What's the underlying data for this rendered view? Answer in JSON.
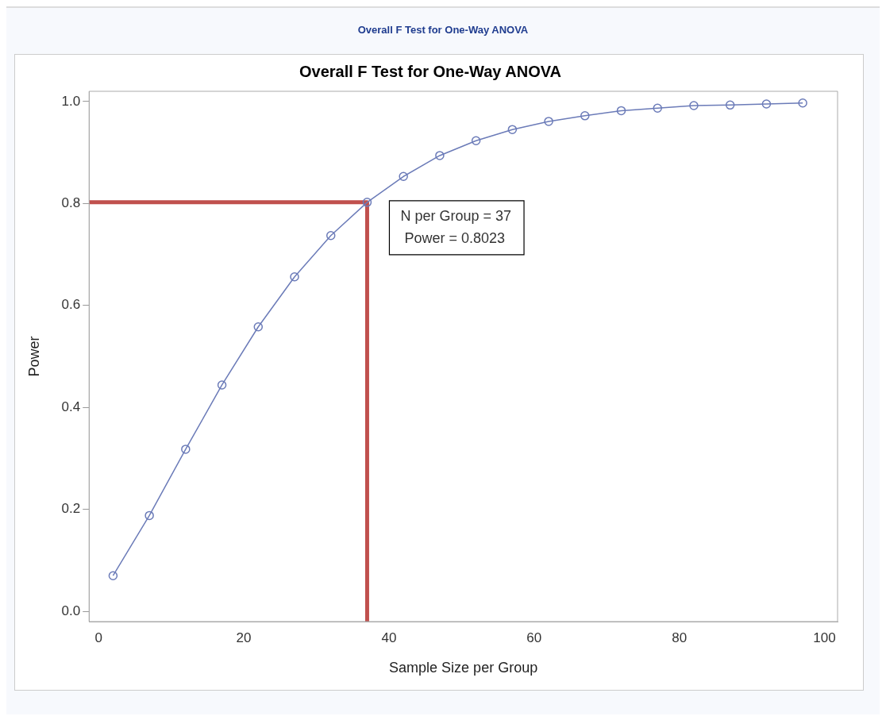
{
  "chart_data": {
    "type": "line",
    "subtitle": "Overall F Test for One-Way ANOVA",
    "title": "Overall F Test for One-Way ANOVA",
    "xlabel": "Sample Size per Group",
    "ylabel": "Power",
    "series": [
      {
        "color": "#6b7bb8",
        "x": [
          2,
          7,
          12,
          17,
          22,
          27,
          32,
          37,
          42,
          47,
          52,
          57,
          62,
          67,
          72,
          77,
          82,
          87,
          92,
          97
        ],
        "values": [
          0.07,
          0.188,
          0.318,
          0.444,
          0.558,
          0.656,
          0.737,
          0.8023,
          0.853,
          0.894,
          0.923,
          0.945,
          0.961,
          0.972,
          0.982,
          0.987,
          0.992,
          0.993,
          0.995,
          0.997
        ],
        "marker": "circle"
      },
      {
        "color": "#c0504d",
        "x": [
          -1.3,
          37,
          37
        ],
        "values": [
          0.8023,
          0.8023,
          -0.02
        ],
        "marker": "none"
      }
    ],
    "annotations": [
      {
        "text": "N per Group = 37\n Power = 0.8023",
        "x": 37,
        "y": 0.8023
      }
    ],
    "xlim": [
      -1.3,
      101.8
    ],
    "ylim": [
      -0.02,
      1.02
    ],
    "xticks": [
      0,
      20,
      40,
      60,
      80,
      100
    ],
    "yticks": [
      {
        "value": 0,
        "label": "0.0"
      },
      {
        "value": 0.2,
        "label": "0.2"
      },
      {
        "value": 0.4,
        "label": "0.4"
      },
      {
        "value": 0.6,
        "label": "0.6"
      },
      {
        "value": 0.8,
        "label": "0.8"
      },
      {
        "value": 1,
        "label": "1.0"
      }
    ],
    "grid": false,
    "legend": false
  }
}
